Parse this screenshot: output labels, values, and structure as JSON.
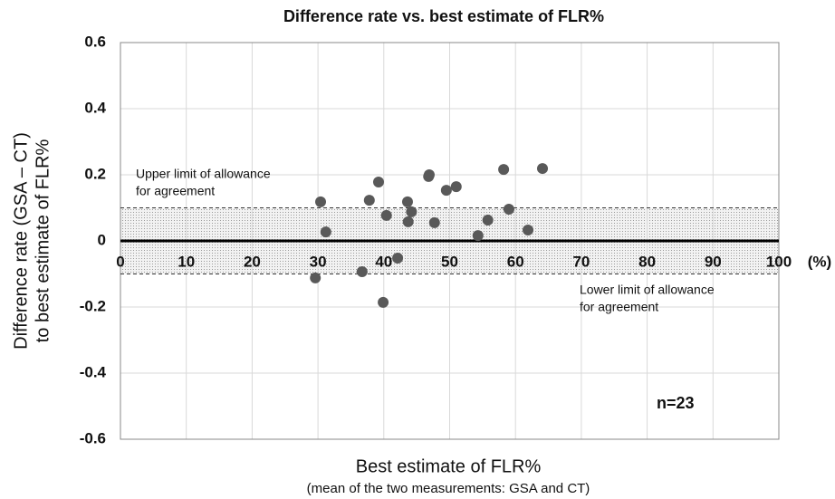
{
  "chart_data": {
    "type": "scatter",
    "title": "Difference rate  vs.  best estimate of FLR%",
    "xlabel": "Best estimate of FLR%",
    "xlabel_note": "(mean of the two measurements: GSA and CT)",
    "x_unit": "(%)",
    "ylabel": [
      "Difference rate (GSA – CT)",
      "to best estimate of FLR%"
    ],
    "annotations": [
      {
        "lines": [
          "Upper limit of allowance",
          "for agreement"
        ]
      },
      {
        "lines": [
          "Lower limit of allowance",
          "for agreement"
        ]
      },
      {
        "lines": [
          "n=23"
        ]
      }
    ],
    "agreement_limits": [
      -0.1,
      0.1
    ],
    "color": "#595959",
    "x": [
      29.6,
      30.4,
      31.2,
      36.7,
      37.8,
      39.2,
      39.9,
      40.4,
      42.1,
      43.6,
      43.7,
      44.2,
      46.8,
      46.9,
      47.7,
      49.5,
      51.0,
      54.3,
      55.8,
      58.2,
      59.0,
      61.9,
      64.1
    ],
    "values": [
      -0.112,
      0.118,
      0.027,
      -0.093,
      0.123,
      0.178,
      -0.186,
      0.077,
      -0.052,
      0.118,
      0.058,
      0.088,
      0.195,
      0.2,
      0.055,
      0.153,
      0.164,
      0.016,
      0.063,
      0.216,
      0.096,
      0.033,
      0.219
    ],
    "xlim": [
      0,
      100
    ],
    "xticks": [
      0,
      10,
      20,
      30,
      40,
      50,
      60,
      70,
      80,
      90,
      100
    ],
    "ylim": [
      -0.6,
      0.6
    ],
    "yticks": [
      -0.6,
      -0.4,
      -0.2,
      0,
      0.2,
      0.4,
      0.6
    ],
    "grid": true
  }
}
